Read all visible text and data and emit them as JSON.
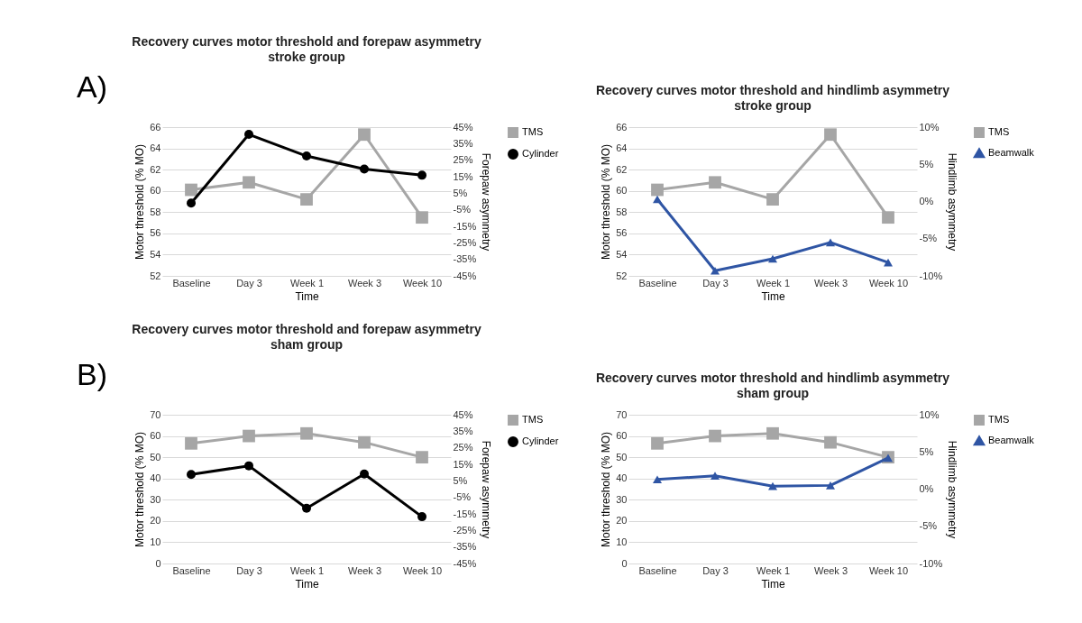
{
  "chart_data": [
    {
      "type": "line",
      "title": "Recovery curves motor threshold and forepaw asymmetry",
      "subtitle": "stroke group",
      "xlabel": "Time",
      "ylabel": "Motor threshold (% MO)",
      "y2label": "Forepaw asymmetry",
      "annotations": [
        "A)"
      ],
      "categories": [
        "Baseline",
        "Day 3",
        "Week 1",
        "Week 3",
        "Week 10"
      ],
      "ylim": [
        52,
        66
      ],
      "yticks": [
        52,
        54,
        56,
        58,
        60,
        62,
        64,
        66
      ],
      "y2lim": [
        -45,
        45
      ],
      "y2ticks": [
        {
          "value": -45,
          "label": "-45%"
        },
        {
          "value": -35,
          "label": "-35%"
        },
        {
          "value": -25,
          "label": "-25%"
        },
        {
          "value": -15,
          "label": "-15%"
        },
        {
          "value": -5,
          "label": "-5%"
        },
        {
          "value": 5,
          "label": "5%"
        },
        {
          "value": 15,
          "label": "15%"
        },
        {
          "value": 25,
          "label": "25%"
        },
        {
          "value": 35,
          "label": "35%"
        },
        {
          "value": 45,
          "label": "45%"
        }
      ],
      "grid": "y",
      "legend": "right",
      "series": [
        {
          "name": "TMS",
          "color": "#a6a6a6",
          "marker": "square",
          "values": [
            60.1,
            60.8,
            59.2,
            65.3,
            57.5
          ]
        },
        {
          "name": "Cylinder",
          "color": "#000000",
          "marker": "circle",
          "axis": "y2",
          "values": [
            -1,
            40.6,
            27.5,
            19.6,
            15.9
          ]
        }
      ]
    },
    {
      "type": "line",
      "title": "Recovery curves motor threshold and hindlimb asymmetry",
      "subtitle": "stroke group",
      "xlabel": "Time",
      "ylabel": "Motor threshold (% MO)",
      "y2label": "Hindlimb asymmetry",
      "categories": [
        "Baseline",
        "Day 3",
        "Week 1",
        "Week 3",
        "Week 10"
      ],
      "ylim": [
        52,
        66
      ],
      "yticks": [
        52,
        54,
        56,
        58,
        60,
        62,
        64,
        66
      ],
      "y2lim": [
        -10,
        10
      ],
      "y2ticks": [
        {
          "value": -10,
          "label": "-10%"
        },
        {
          "value": -5,
          "label": "-5%"
        },
        {
          "value": 0,
          "label": "0%"
        },
        {
          "value": 5,
          "label": "5%"
        },
        {
          "value": 10,
          "label": "10%"
        }
      ],
      "grid": "y",
      "legend": "right",
      "series": [
        {
          "name": "TMS",
          "color": "#a6a6a6",
          "marker": "square",
          "values": [
            60.1,
            60.8,
            59.2,
            65.3,
            57.5
          ]
        },
        {
          "name": "Beamwalk",
          "color": "#2f55a4",
          "marker": "triangle",
          "axis": "y2",
          "values": [
            0.3,
            -9.3,
            -7.7,
            -5.5,
            -8.2
          ]
        }
      ]
    },
    {
      "type": "line",
      "title": "Recovery curves motor threshold and forepaw asymmetry",
      "subtitle": "sham group",
      "xlabel": "Time",
      "ylabel": "Motor threshold (% MO)",
      "y2label": "Forepaw asymmetry",
      "annotations": [
        "B)"
      ],
      "categories": [
        "Baseline",
        "Day 3",
        "Week 1",
        "Week 3",
        "Week 10"
      ],
      "ylim": [
        0,
        70
      ],
      "yticks": [
        0,
        10,
        20,
        30,
        40,
        50,
        60,
        70
      ],
      "y2lim": [
        -45,
        45
      ],
      "y2ticks": [
        {
          "value": -45,
          "label": "-45%"
        },
        {
          "value": -35,
          "label": "-35%"
        },
        {
          "value": -25,
          "label": "-25%"
        },
        {
          "value": -15,
          "label": "-15%"
        },
        {
          "value": -5,
          "label": "-5%"
        },
        {
          "value": 5,
          "label": "5%"
        },
        {
          "value": 15,
          "label": "15%"
        },
        {
          "value": 25,
          "label": "25%"
        },
        {
          "value": 35,
          "label": "35%"
        },
        {
          "value": 45,
          "label": "45%"
        }
      ],
      "grid": "y",
      "legend": "right",
      "series": [
        {
          "name": "TMS",
          "color": "#a6a6a6",
          "marker": "square",
          "values": [
            56.5,
            60,
            61.2,
            57,
            50
          ]
        },
        {
          "name": "Cylinder",
          "color": "#000000",
          "marker": "circle",
          "axis": "y2",
          "values": [
            8.9,
            14.1,
            -11.6,
            9.1,
            -16.7
          ]
        }
      ]
    },
    {
      "type": "line",
      "title": "Recovery curves motor threshold and hindlimb asymmetry",
      "subtitle": "sham group",
      "xlabel": "Time",
      "ylabel": "Motor threshold (% MO)",
      "y2label": "Hindlimb asymmetry",
      "categories": [
        "Baseline",
        "Day 3",
        "Week 1",
        "Week 3",
        "Week 10"
      ],
      "ylim": [
        0,
        70
      ],
      "yticks": [
        0,
        10,
        20,
        30,
        40,
        50,
        60,
        70
      ],
      "y2lim": [
        -10,
        10
      ],
      "y2ticks": [
        {
          "value": -10,
          "label": "-10%"
        },
        {
          "value": -5,
          "label": "-5%"
        },
        {
          "value": 0,
          "label": "0%"
        },
        {
          "value": 5,
          "label": "5%"
        },
        {
          "value": 10,
          "label": "10%"
        }
      ],
      "grid": "y",
      "legend": "right",
      "series": [
        {
          "name": "TMS",
          "color": "#a6a6a6",
          "marker": "square",
          "values": [
            56.5,
            60,
            61.2,
            57,
            50
          ]
        },
        {
          "name": "Beamwalk",
          "color": "#2f55a4",
          "marker": "triangle",
          "axis": "y2",
          "values": [
            1.3,
            1.8,
            0.4,
            0.5,
            4.2
          ]
        }
      ]
    }
  ]
}
